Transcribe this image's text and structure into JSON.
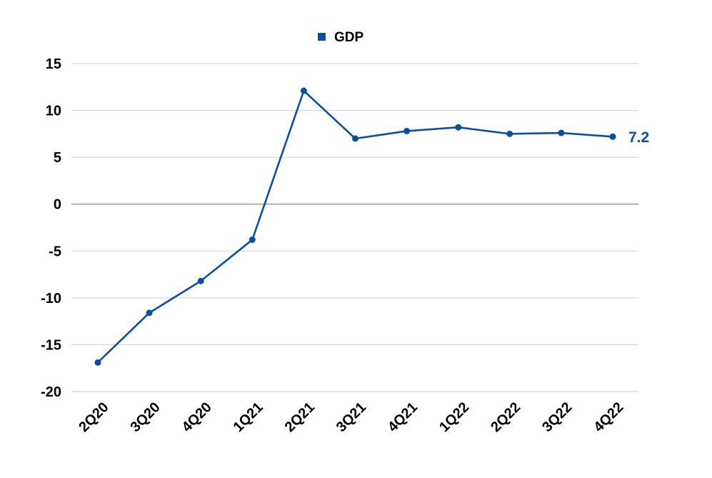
{
  "chart_data": {
    "type": "line",
    "title": "",
    "xlabel": "",
    "ylabel": "",
    "categories": [
      "2Q20",
      "3Q20",
      "4Q20",
      "1Q21",
      "2Q21",
      "3Q21",
      "4Q21",
      "1Q22",
      "2Q22",
      "3Q22",
      "4Q22"
    ],
    "series": [
      {
        "name": "GDP",
        "values": [
          -16.9,
          -11.6,
          -8.2,
          -3.8,
          12.1,
          7.0,
          7.8,
          8.2,
          7.5,
          7.6,
          7.2
        ],
        "color": "#0b4ea8"
      }
    ],
    "ylim": [
      -20,
      15
    ],
    "yticks": [
      "15",
      "10",
      "5",
      "0",
      "-5",
      "-10",
      "-15",
      "-20"
    ],
    "ytick_values": [
      15,
      10,
      5,
      0,
      -5,
      -10,
      -15,
      -20
    ],
    "grid": true,
    "legend": {
      "position": "top-center",
      "label": "GDP"
    },
    "end_label": "7.2"
  }
}
